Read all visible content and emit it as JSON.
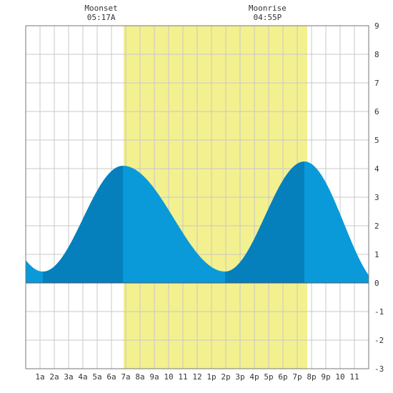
{
  "chart_data": {
    "type": "area",
    "title": "",
    "xlabel": "",
    "ylabel": "",
    "x_range_hours": [
      0,
      24
    ],
    "ylim": [
      -3,
      9
    ],
    "y_ticks": [
      -3,
      -2,
      -1,
      0,
      1,
      2,
      3,
      4,
      5,
      6,
      7,
      8,
      9
    ],
    "x_tick_labels": [
      {
        "hour": 1,
        "label": "1a"
      },
      {
        "hour": 2,
        "label": "2a"
      },
      {
        "hour": 3,
        "label": "3a"
      },
      {
        "hour": 4,
        "label": "4a"
      },
      {
        "hour": 5,
        "label": "5a"
      },
      {
        "hour": 6,
        "label": "6a"
      },
      {
        "hour": 7,
        "label": "7a"
      },
      {
        "hour": 8,
        "label": "8a"
      },
      {
        "hour": 9,
        "label": "9a"
      },
      {
        "hour": 10,
        "label": "10"
      },
      {
        "hour": 11,
        "label": "11"
      },
      {
        "hour": 12,
        "label": "12"
      },
      {
        "hour": 13,
        "label": "1p"
      },
      {
        "hour": 14,
        "label": "2p"
      },
      {
        "hour": 15,
        "label": "3p"
      },
      {
        "hour": 16,
        "label": "4p"
      },
      {
        "hour": 17,
        "label": "5p"
      },
      {
        "hour": 18,
        "label": "6p"
      },
      {
        "hour": 19,
        "label": "7p"
      },
      {
        "hour": 20,
        "label": "8p"
      },
      {
        "hour": 21,
        "label": "9p"
      },
      {
        "hour": 22,
        "label": "10"
      },
      {
        "hour": 23,
        "label": "11"
      }
    ],
    "daylight": {
      "start_hour": 6.85,
      "end_hour": 19.7
    },
    "moon_events": [
      {
        "name": "Moonset",
        "time": "05:17A",
        "hour": 5.28
      },
      {
        "name": "Moonrise",
        "time": "04:55P",
        "hour": 16.92
      }
    ],
    "tide_extremes": [
      {
        "type": "low",
        "hour": 1.2,
        "height": 0.4
      },
      {
        "type": "high",
        "hour": 6.8,
        "height": 4.1
      },
      {
        "type": "low",
        "hour": 13.95,
        "height": 0.4
      },
      {
        "type": "high",
        "hour": 19.5,
        "height": 4.25
      }
    ],
    "tide_start": {
      "hour": 0,
      "height": 0.7
    },
    "tide_end": {
      "hour": 24,
      "height": 1.25
    },
    "colors": {
      "water": "#0a9ad9",
      "water_dark": "#0580bc",
      "daylight": "#f3f08f",
      "grid": "#c8c8c8",
      "border": "#777777",
      "zero_line": "#555555",
      "background": "#ffffff"
    }
  }
}
